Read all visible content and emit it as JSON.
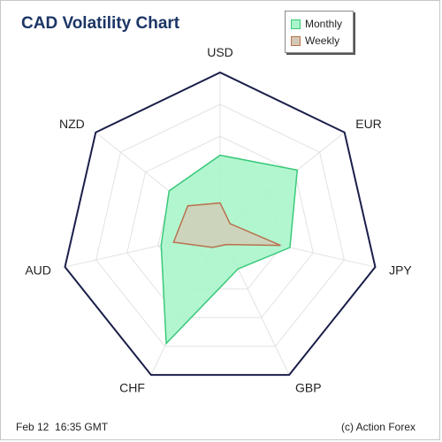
{
  "chart_data": {
    "type": "radar",
    "title": "CAD Volatility Chart",
    "categories": [
      "USD",
      "EUR",
      "JPY",
      "GBP",
      "CHF",
      "AUD",
      "NZD"
    ],
    "rmax": 1.0,
    "grid_levels": 5,
    "series": [
      {
        "name": "Monthly",
        "values": [
          0.48,
          0.62,
          0.45,
          0.26,
          0.78,
          0.38,
          0.41
        ],
        "color": "#3ac97a",
        "fill": "#aaf5cb"
      },
      {
        "name": "Weekly",
        "values": [
          0.18,
          0.08,
          0.39,
          0.09,
          0.11,
          0.3,
          0.26
        ],
        "color": "#b8724e",
        "fill": "#d4c9b6"
      }
    ],
    "legend_position": "top-right"
  },
  "footer": {
    "timestamp": "Feb 12  16:35 GMT",
    "credit": "(c) Action Forex"
  }
}
